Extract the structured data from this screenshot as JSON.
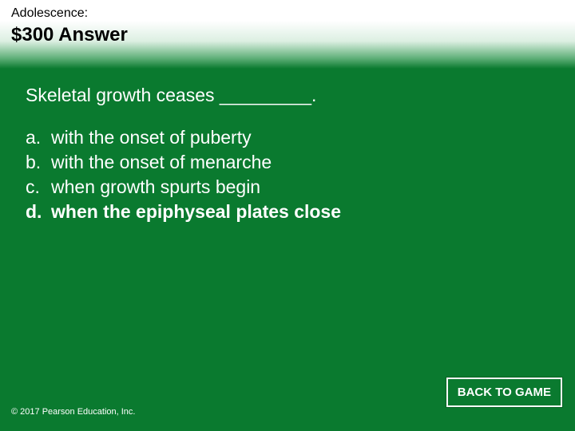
{
  "header": {
    "category": "Adolescence:",
    "title": "$300 Answer"
  },
  "question": "Skeletal growth ceases _________.",
  "options": [
    {
      "letter": "a.",
      "text": "with the onset of puberty",
      "bold": false
    },
    {
      "letter": "b.",
      "text": "with the onset of menarche",
      "bold": false
    },
    {
      "letter": "c.",
      "text": "when growth spurts begin",
      "bold": false
    },
    {
      "letter": "d.",
      "text": "when the epiphyseal plates close",
      "bold": true
    }
  ],
  "footer": {
    "copyright": "© 2017 Pearson Education, Inc.",
    "back_label": "BACK TO GAME"
  },
  "colors": {
    "background": "#0a7a2f",
    "text_light": "#ffffff",
    "text_dark": "#000000",
    "button_border": "#ffffff",
    "button_bg": "#0a7a2f"
  }
}
